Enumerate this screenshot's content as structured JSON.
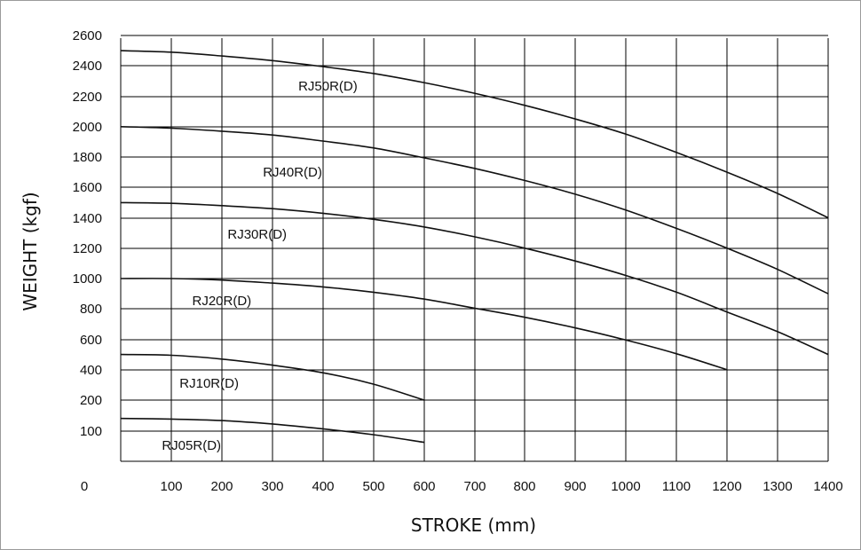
{
  "chart_data": {
    "type": "line",
    "xlabel": "STROKE (mm)",
    "ylabel": "WEIGHT (kgf)",
    "x_origin_label": "0",
    "x_ticks": [
      100,
      200,
      300,
      400,
      500,
      600,
      700,
      800,
      900,
      1000,
      1100,
      1200,
      1300,
      1400
    ],
    "y_ticks": [
      100,
      200,
      400,
      600,
      800,
      1000,
      1200,
      1400,
      1600,
      1800,
      2000,
      2200,
      2400,
      2600
    ],
    "xlim": [
      0,
      1400
    ],
    "ylim": [
      0,
      2600
    ],
    "y_scale": "compressed below 200 (100 tick midway between baseline and 200)",
    "grid": true,
    "line_color": "#111111",
    "series": [
      {
        "name": "RJ50R(D)",
        "x": [
          0,
          100,
          200,
          300,
          400,
          500,
          600,
          700,
          800,
          900,
          1000,
          1100,
          1200,
          1300,
          1400
        ],
        "y": [
          2500,
          2490,
          2465,
          2435,
          2395,
          2350,
          2290,
          2220,
          2140,
          2050,
          1950,
          1830,
          1700,
          1560,
          1400
        ]
      },
      {
        "name": "RJ40R(D)",
        "x": [
          0,
          100,
          200,
          300,
          400,
          500,
          600,
          700,
          800,
          900,
          1000,
          1100,
          1200,
          1300,
          1400
        ],
        "y": [
          2000,
          1990,
          1970,
          1945,
          1905,
          1860,
          1795,
          1725,
          1645,
          1555,
          1450,
          1330,
          1200,
          1060,
          900
        ]
      },
      {
        "name": "RJ30R(D)",
        "x": [
          0,
          100,
          200,
          300,
          400,
          500,
          600,
          700,
          800,
          900,
          1000,
          1100,
          1200,
          1300,
          1400
        ],
        "y": [
          1500,
          1495,
          1480,
          1460,
          1430,
          1390,
          1340,
          1275,
          1200,
          1115,
          1020,
          910,
          780,
          650,
          500
        ]
      },
      {
        "name": "RJ20R(D)",
        "x": [
          0,
          100,
          200,
          300,
          400,
          500,
          600,
          700,
          800,
          900,
          1000,
          1100,
          1200
        ],
        "y": [
          1000,
          1000,
          990,
          970,
          945,
          910,
          865,
          805,
          745,
          675,
          595,
          505,
          400
        ]
      },
      {
        "name": "RJ10R(D)",
        "x": [
          0,
          100,
          200,
          300,
          400,
          500,
          600
        ],
        "y": [
          500,
          495,
          470,
          430,
          380,
          305,
          200
        ]
      },
      {
        "name": "RJ05R(D)",
        "x": [
          0,
          100,
          200,
          300,
          400,
          500,
          600
        ],
        "y": [
          140,
          138,
          133,
          122,
          106,
          87,
          62
        ]
      }
    ]
  }
}
